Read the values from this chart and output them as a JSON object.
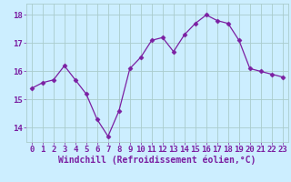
{
  "x": [
    0,
    1,
    2,
    3,
    4,
    5,
    6,
    7,
    8,
    9,
    10,
    11,
    12,
    13,
    14,
    15,
    16,
    17,
    18,
    19,
    20,
    21,
    22,
    23
  ],
  "y": [
    15.4,
    15.6,
    15.7,
    16.2,
    15.7,
    15.2,
    14.3,
    13.7,
    14.6,
    16.1,
    16.5,
    17.1,
    17.2,
    16.7,
    17.3,
    17.7,
    18.0,
    17.8,
    17.7,
    17.1,
    16.1,
    16.0,
    15.9,
    15.8
  ],
  "line_color": "#7b1fa2",
  "marker": "D",
  "marker_size": 2.5,
  "bg_color": "#cceeff",
  "grid_color": "#aacccc",
  "xlabel": "Windchill (Refroidissement éolien,°C)",
  "xlabel_color": "#7b1fa2",
  "xlabel_fontsize": 7,
  "tick_color": "#7b1fa2",
  "tick_fontsize": 6.5,
  "ylim": [
    13.5,
    18.4
  ],
  "yticks": [
    14,
    15,
    16,
    17,
    18
  ],
  "xticks": [
    0,
    1,
    2,
    3,
    4,
    5,
    6,
    7,
    8,
    9,
    10,
    11,
    12,
    13,
    14,
    15,
    16,
    17,
    18,
    19,
    20,
    21,
    22,
    23
  ]
}
